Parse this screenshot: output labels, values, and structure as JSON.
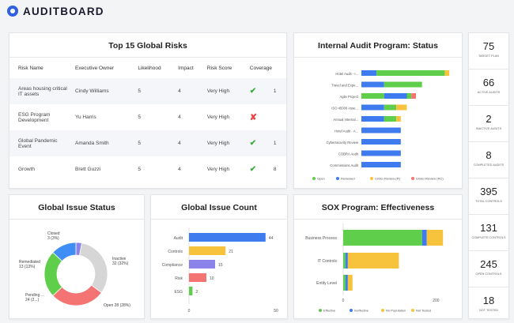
{
  "brand": {
    "name": "AUDITBOARD"
  },
  "colors": {
    "green": "#5fce4a",
    "blue": "#3e7bef",
    "yellow": "#f7c33d",
    "red": "#f47474",
    "purple": "#8b82ea",
    "grey": "#d6d6d6",
    "lightblue": "#3e8ef5"
  },
  "risks": {
    "title": "Top 15 Global Risks",
    "columns": [
      "Risk Name",
      "Executive Owner",
      "Likelihood",
      "Impact",
      "Risk Score",
      "Coverage"
    ],
    "rows": [
      {
        "name": "Areas housing critical IT assets",
        "owner": "Cindy Williams",
        "likelihood": "5",
        "impact": "4",
        "score": "Very High",
        "covered": true,
        "coverage": "1"
      },
      {
        "name": "ESG Program Development",
        "owner": "Yu Harris",
        "likelihood": "5",
        "impact": "4",
        "score": "Very High",
        "covered": false,
        "coverage": ""
      },
      {
        "name": "Global Pandemic Event",
        "owner": "Amanda Smith",
        "likelihood": "5",
        "impact": "4",
        "score": "Very High",
        "covered": true,
        "coverage": "1"
      },
      {
        "name": "Growth",
        "owner": "Brett Guzzi",
        "likelihood": "5",
        "impact": "4",
        "score": "Very High",
        "covered": true,
        "coverage": "8"
      }
    ]
  },
  "stats": [
    {
      "value": "75",
      "label": "Target Plan"
    },
    {
      "value": "66",
      "label": "Active Audits"
    },
    {
      "value": "2",
      "label": "Inactive Audits"
    },
    {
      "value": "8",
      "label": "Completed Audits"
    },
    {
      "value": "395",
      "label": "Total Controls"
    },
    {
      "value": "131",
      "label": "Complete Controls"
    },
    {
      "value": "245",
      "label": "Open Controls"
    },
    {
      "value": "18",
      "label": "Not Tested"
    }
  ],
  "chart_data": [
    {
      "title": "Internal Audit Program: Status",
      "type": "bar",
      "orientation": "horizontal",
      "stacked": true,
      "categories": [
        "Hotel Audit - I...",
        "Travel and Expe...",
        "Agile Project",
        "ISO 45000 Asse...",
        "Annual Internal...",
        "Hotel Audit - A...",
        "Cybersecurity Review",
        "COBRA Audit",
        "Commissions Audit"
      ],
      "series": [
        {
          "name": "Open",
          "color": "#5fce4a",
          "values": [
            4,
            2,
            0,
            0,
            0,
            0,
            0,
            0,
            0
          ]
        },
        {
          "name": "Reviewed",
          "color": "#3e7bef",
          "values": [
            1,
            1,
            3,
            2,
            2,
            3,
            3,
            3,
            3
          ]
        },
        {
          "name": "Under Review (R)",
          "color": "#f7c33d",
          "values": [
            0.3,
            0,
            0.3,
            0.6,
            0.3,
            0,
            0,
            0,
            0
          ]
        },
        {
          "name": "Under Review (RC)",
          "color": "#f47474",
          "values": [
            0,
            0,
            0.3,
            0,
            0,
            0,
            0,
            0,
            0
          ]
        }
      ],
      "segments": [
        [
          [
            "#3e7bef",
            1
          ],
          [
            "#5fce4a",
            4.5
          ],
          [
            "#f7c33d",
            0.3
          ]
        ],
        [
          [
            "#3e7bef",
            1.5
          ],
          [
            "#5fce4a",
            2.5
          ]
        ],
        [
          [
            "#5fce4a",
            1.5
          ],
          [
            "#3e7bef",
            1.5
          ],
          [
            "#5fce4a",
            0.3
          ],
          [
            "#f47474",
            0.3
          ]
        ],
        [
          [
            "#3e7bef",
            1.5
          ],
          [
            "#5fce4a",
            0.8
          ],
          [
            "#f7c33d",
            0.7
          ]
        ],
        [
          [
            "#3e7bef",
            1.5
          ],
          [
            "#5fce4a",
            0.8
          ],
          [
            "#f7c33d",
            0.3
          ]
        ],
        [
          [
            "#3e7bef",
            2.6
          ]
        ],
        [
          [
            "#3e7bef",
            2.6
          ]
        ],
        [
          [
            "#3e7bef",
            2.6
          ]
        ],
        [
          [
            "#3e7bef",
            2.6
          ]
        ]
      ],
      "xmax": 6
    },
    {
      "title": "Global Issue Status",
      "type": "pie",
      "donut": true,
      "slices": [
        {
          "label": "Closed",
          "display": "Closed 3 (3%)",
          "value": 3,
          "color": "#8b82ea"
        },
        {
          "label": "Inactive",
          "display": "Inactive 32 (32%)",
          "value": 32,
          "color": "#d6d6d6"
        },
        {
          "label": "Open",
          "display": "Open 28 (28%)",
          "value": 28,
          "color": "#f47474"
        },
        {
          "label": "Pending",
          "display": "Pending ... 24 (2...)",
          "value": 24,
          "color": "#5fce4a"
        },
        {
          "label": "Remediated",
          "display": "Remediated 13 (13%)",
          "value": 13,
          "color": "#3e8ef5"
        }
      ]
    },
    {
      "title": "Global Issue Count",
      "type": "bar",
      "orientation": "horizontal",
      "categories": [
        "Audit",
        "Controls",
        "Compliance",
        "Risk",
        "ESG"
      ],
      "values": [
        44,
        21,
        15,
        10,
        2
      ],
      "colors": [
        "#3e7bef",
        "#f7c33d",
        "#8b82ea",
        "#f47474",
        "#5fce4a"
      ],
      "xlim": [
        0,
        50
      ],
      "xticks": [
        "0",
        "50"
      ]
    },
    {
      "title": "SOX Program: Effectiveness",
      "type": "bar",
      "orientation": "horizontal",
      "stacked": true,
      "categories": [
        "Business Process",
        "IT Controls",
        "Entity Level"
      ],
      "series": [
        {
          "name": "Effective",
          "color": "#5fce4a",
          "values": [
            170,
            5,
            5
          ]
        },
        {
          "name": "Ineffective",
          "color": "#3e7bef",
          "values": [
            10,
            5,
            5
          ]
        },
        {
          "name": "No Population",
          "color": "#f7c33d",
          "values": [
            0,
            0,
            0
          ]
        },
        {
          "name": "Not Tested",
          "color": "#f7c33d",
          "values": [
            35,
            110,
            10
          ]
        }
      ],
      "xlim": [
        0,
        230
      ],
      "xticks": [
        "0",
        "200"
      ]
    }
  ]
}
